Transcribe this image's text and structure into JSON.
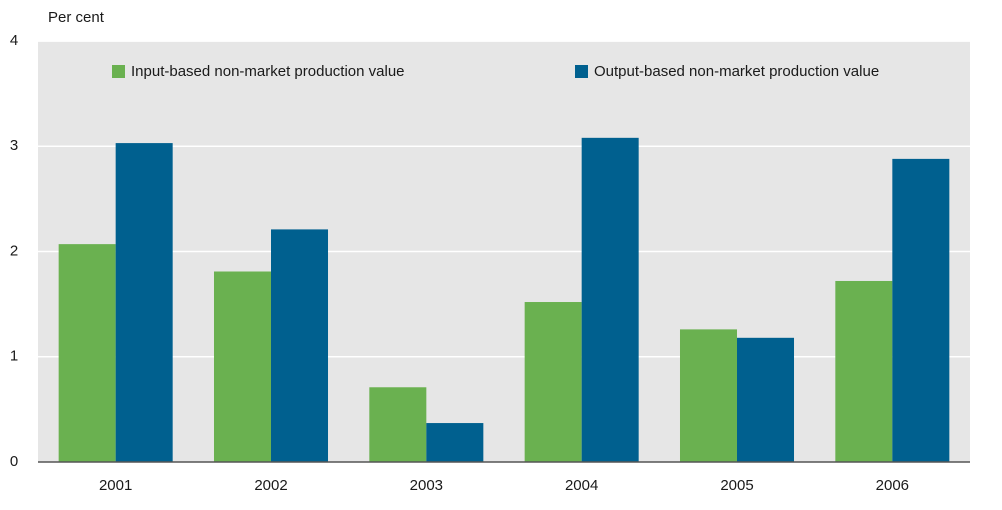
{
  "chart_data": {
    "type": "bar",
    "y_label": "Per cent",
    "categories": [
      "2001",
      "2002",
      "2003",
      "2004",
      "2005",
      "2006"
    ],
    "series": [
      {
        "name": "Input-based non-market production value",
        "color": "#6ab150",
        "values": [
          2.07,
          1.81,
          0.71,
          1.52,
          1.26,
          1.72
        ]
      },
      {
        "name": "Output-based non-market production value",
        "color": "#00608f",
        "values": [
          3.03,
          2.21,
          0.37,
          3.08,
          1.18,
          2.88
        ]
      }
    ],
    "ylim": [
      0,
      4
    ],
    "yticks": [
      0,
      1,
      2,
      3,
      4
    ],
    "grid": true,
    "legend": "top"
  }
}
